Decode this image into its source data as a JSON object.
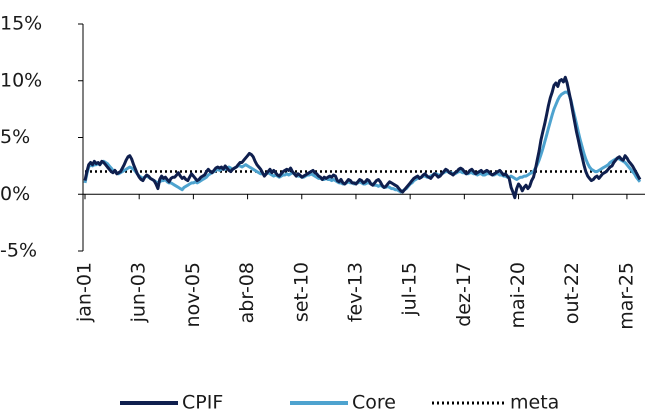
{
  "chart_data": {
    "type": "line",
    "categories": [
      "jan-01",
      null,
      null,
      null,
      null,
      null,
      null,
      null,
      null,
      null,
      null,
      null,
      null,
      null,
      null,
      null,
      null,
      null,
      null,
      null,
      null,
      null,
      null,
      null,
      null,
      null,
      null,
      null,
      null,
      "jun-03",
      null,
      null,
      null,
      null,
      null,
      null,
      null,
      null,
      null,
      null,
      null,
      null,
      null,
      null,
      null,
      null,
      null,
      null,
      null,
      null,
      null,
      null,
      null,
      null,
      null,
      null,
      null,
      null,
      "nov-05",
      null,
      null,
      null,
      null,
      null,
      null,
      null,
      null,
      null,
      null,
      null,
      null,
      null,
      null,
      null,
      null,
      null,
      null,
      null,
      null,
      null,
      null,
      null,
      null,
      null,
      null,
      null,
      null,
      "abr-08",
      null,
      null,
      null,
      null,
      null,
      null,
      null,
      null,
      null,
      null,
      null,
      null,
      null,
      null,
      null,
      null,
      null,
      null,
      null,
      null,
      null,
      null,
      null,
      null,
      null,
      null,
      null,
      null,
      "set-10",
      null,
      null,
      null,
      null,
      null,
      null,
      null,
      null,
      null,
      null,
      null,
      null,
      null,
      null,
      null,
      null,
      null,
      null,
      null,
      null,
      null,
      null,
      null,
      null,
      null,
      null,
      null,
      null,
      "fev-13",
      null,
      null,
      null,
      null,
      null,
      null,
      null,
      null,
      null,
      null,
      null,
      null,
      null,
      null,
      null,
      null,
      null,
      null,
      null,
      null,
      null,
      null,
      null,
      null,
      null,
      null,
      null,
      null,
      "jul-15",
      null,
      null,
      null,
      null,
      null,
      null,
      null,
      null,
      null,
      null,
      null,
      null,
      null,
      null,
      null,
      null,
      null,
      null,
      null,
      null,
      null,
      null,
      null,
      null,
      null,
      null,
      null,
      null,
      "dez-17",
      null,
      null,
      null,
      null,
      null,
      null,
      null,
      null,
      null,
      null,
      null,
      null,
      null,
      null,
      null,
      null,
      null,
      null,
      null,
      null,
      null,
      null,
      null,
      null,
      null,
      null,
      null,
      null,
      "mai-20",
      null,
      null,
      null,
      null,
      null,
      null,
      null,
      null,
      null,
      null,
      null,
      null,
      null,
      null,
      null,
      null,
      null,
      null,
      null,
      null,
      null,
      null,
      null,
      null,
      null,
      null,
      null,
      null,
      "out-22",
      null,
      null,
      null,
      null,
      null,
      null,
      null,
      null,
      null,
      null,
      null,
      null,
      null,
      null,
      null,
      null,
      null,
      null,
      null,
      null,
      null,
      null,
      null,
      null,
      null,
      null,
      null,
      null,
      "mar-25",
      null,
      null,
      null,
      null,
      null,
      null,
      null
    ],
    "series": [
      {
        "name": "CPIF",
        "color": "#0f1f4e",
        "values": [
          1.2,
          2.0,
          2.6,
          2.8,
          2.6,
          2.9,
          2.7,
          2.8,
          2.6,
          2.9,
          2.8,
          2.6,
          2.4,
          2.2,
          2.0,
          1.9,
          2.1,
          1.8,
          1.9,
          2.0,
          2.3,
          2.6,
          3.0,
          3.3,
          3.4,
          3.1,
          2.6,
          2.2,
          1.8,
          1.5,
          1.3,
          1.2,
          1.5,
          1.7,
          1.6,
          1.4,
          1.3,
          1.2,
          0.9,
          0.5,
          1.3,
          1.6,
          1.4,
          1.5,
          1.3,
          1.1,
          1.4,
          1.5,
          1.5,
          1.7,
          1.9,
          1.6,
          1.4,
          1.5,
          1.3,
          1.2,
          1.5,
          1.8,
          1.6,
          1.4,
          1.2,
          1.3,
          1.5,
          1.6,
          1.7,
          2.0,
          2.2,
          2.0,
          1.9,
          2.1,
          2.3,
          2.4,
          2.3,
          2.4,
          2.2,
          2.5,
          2.3,
          2.1,
          2.0,
          2.2,
          2.3,
          2.4,
          2.6,
          2.8,
          2.8,
          3.0,
          3.2,
          3.4,
          3.6,
          3.5,
          3.3,
          2.9,
          2.6,
          2.4,
          2.2,
          1.9,
          1.6,
          1.8,
          2.0,
          2.2,
          1.9,
          2.1,
          1.9,
          1.7,
          1.6,
          1.8,
          2.0,
          2.1,
          2.2,
          2.1,
          2.3,
          2.0,
          1.8,
          1.6,
          1.8,
          1.7,
          1.5,
          1.6,
          1.7,
          1.8,
          1.9,
          2.0,
          2.1,
          1.9,
          1.8,
          1.6,
          1.5,
          1.3,
          1.5,
          1.4,
          1.5,
          1.6,
          1.5,
          1.7,
          1.6,
          1.2,
          1.1,
          1.3,
          1.0,
          0.9,
          1.1,
          1.3,
          1.2,
          1.0,
          1.0,
          0.9,
          1.1,
          1.3,
          1.2,
          1.0,
          1.1,
          1.3,
          1.2,
          0.9,
          0.8,
          1.0,
          1.2,
          1.3,
          1.1,
          0.8,
          0.6,
          0.7,
          0.9,
          1.1,
          1.0,
          0.9,
          0.8,
          0.7,
          0.5,
          0.3,
          0.2,
          0.4,
          0.6,
          0.8,
          1.0,
          1.2,
          1.4,
          1.5,
          1.6,
          1.4,
          1.5,
          1.7,
          1.8,
          1.6,
          1.5,
          1.4,
          1.6,
          1.8,
          1.7,
          1.5,
          1.6,
          1.8,
          2.0,
          2.2,
          2.1,
          1.9,
          1.8,
          1.7,
          1.9,
          2.0,
          2.2,
          2.3,
          2.2,
          2.0,
          1.8,
          1.9,
          2.1,
          2.2,
          2.0,
          1.8,
          1.9,
          2.0,
          2.1,
          1.9,
          2.0,
          2.1,
          2.0,
          1.8,
          1.7,
          1.8,
          1.9,
          2.0,
          2.1,
          1.9,
          1.7,
          1.8,
          1.6,
          1.4,
          0.6,
          0.2,
          -0.3,
          0.5,
          0.9,
          0.7,
          0.3,
          0.6,
          0.8,
          0.5,
          0.7,
          1.2,
          1.5,
          2.2,
          3.0,
          3.8,
          4.8,
          5.5,
          6.2,
          7.0,
          7.8,
          8.5,
          9.0,
          9.6,
          9.8,
          9.5,
          10.0,
          10.1,
          9.9,
          10.3,
          9.8,
          9.0,
          8.2,
          7.3,
          6.4,
          5.5,
          4.8,
          4.0,
          3.3,
          2.6,
          2.0,
          1.6,
          1.4,
          1.2,
          1.3,
          1.5,
          1.6,
          1.4,
          1.6,
          1.8,
          1.9,
          2.0,
          2.2,
          2.4,
          2.5,
          2.8,
          3.0,
          3.2,
          3.3,
          3.1,
          3.0,
          3.4,
          3.2,
          2.9,
          2.7,
          2.5,
          2.2,
          1.9,
          1.6,
          1.3
        ]
      },
      {
        "name": "Core",
        "color": "#4ea3cf",
        "values": [
          1.0,
          1.8,
          2.4,
          2.6,
          2.5,
          2.6,
          2.6,
          2.7,
          2.6,
          2.8,
          2.9,
          2.8,
          2.7,
          2.5,
          2.3,
          2.1,
          2.0,
          1.9,
          1.8,
          1.9,
          2.0,
          2.1,
          2.2,
          2.3,
          2.4,
          2.3,
          2.2,
          2.0,
          1.8,
          1.6,
          1.5,
          1.4,
          1.5,
          1.6,
          1.5,
          1.4,
          1.3,
          1.2,
          1.1,
          1.0,
          1.1,
          1.2,
          1.2,
          1.3,
          1.1,
          1.0,
          1.0,
          0.9,
          0.8,
          0.7,
          0.6,
          0.5,
          0.4,
          0.6,
          0.7,
          0.8,
          0.9,
          1.0,
          1.0,
          1.1,
          1.0,
          1.1,
          1.2,
          1.3,
          1.4,
          1.5,
          1.7,
          1.8,
          1.9,
          2.0,
          2.1,
          2.2,
          2.1,
          2.2,
          2.3,
          2.2,
          2.3,
          2.4,
          2.3,
          2.2,
          2.3,
          2.4,
          2.5,
          2.5,
          2.4,
          2.5,
          2.6,
          2.5,
          2.4,
          2.3,
          2.2,
          2.1,
          2.0,
          1.9,
          1.8,
          1.8,
          1.7,
          1.8,
          1.9,
          1.8,
          1.7,
          1.6,
          1.7,
          1.6,
          1.5,
          1.6,
          1.7,
          1.7,
          1.8,
          1.7,
          1.8,
          1.9,
          1.8,
          1.7,
          1.6,
          1.6,
          1.5,
          1.5,
          1.6,
          1.7,
          1.7,
          1.8,
          1.7,
          1.6,
          1.5,
          1.4,
          1.4,
          1.3,
          1.3,
          1.4,
          1.3,
          1.3,
          1.2,
          1.3,
          1.2,
          1.1,
          1.0,
          1.0,
          0.9,
          0.9,
          1.0,
          1.1,
          1.0,
          1.0,
          0.9,
          1.0,
          1.0,
          1.1,
          1.0,
          0.9,
          0.9,
          1.0,
          1.0,
          0.9,
          0.9,
          0.8,
          0.8,
          0.7,
          0.8,
          0.7,
          0.6,
          0.6,
          0.7,
          0.6,
          0.5,
          0.5,
          0.4,
          0.4,
          0.3,
          0.2,
          0.3,
          0.4,
          0.5,
          0.7,
          0.9,
          1.0,
          1.2,
          1.3,
          1.4,
          1.5,
          1.5,
          1.6,
          1.6,
          1.5,
          1.5,
          1.6,
          1.7,
          1.8,
          1.8,
          1.7,
          1.7,
          1.8,
          1.9,
          2.0,
          2.0,
          1.9,
          1.9,
          1.8,
          1.8,
          1.9,
          2.0,
          2.0,
          1.9,
          1.9,
          1.8,
          1.8,
          1.9,
          1.9,
          1.8,
          1.8,
          1.7,
          1.8,
          1.8,
          1.7,
          1.7,
          1.8,
          1.8,
          1.8,
          1.7,
          1.7,
          1.8,
          1.8,
          1.7,
          1.7,
          1.6,
          1.6,
          1.5,
          1.5,
          1.6,
          1.5,
          1.4,
          1.3,
          1.4,
          1.5,
          1.5,
          1.6,
          1.6,
          1.7,
          1.8,
          1.9,
          2.0,
          2.3,
          2.6,
          3.0,
          3.5,
          4.0,
          4.6,
          5.2,
          5.8,
          6.4,
          7.0,
          7.5,
          7.9,
          8.3,
          8.6,
          8.8,
          8.9,
          9.0,
          9.0,
          8.8,
          8.3,
          7.6,
          6.9,
          6.2,
          5.5,
          4.8,
          4.2,
          3.6,
          3.1,
          2.7,
          2.4,
          2.2,
          2.1,
          2.0,
          2.0,
          2.1,
          2.2,
          2.3,
          2.4,
          2.5,
          2.6,
          2.8,
          2.9,
          3.0,
          3.1,
          3.2,
          3.1,
          3.0,
          2.9,
          2.8,
          2.6,
          2.4,
          2.2,
          2.0,
          1.8,
          1.5,
          1.3,
          1.1
        ]
      }
    ],
    "reference_line": {
      "name": "meta",
      "value": 2,
      "color": "#000000",
      "style": "dotted"
    },
    "ylim": [
      -5,
      15
    ],
    "yticks": [
      {
        "value": -5,
        "label": "-5%"
      },
      {
        "value": 0,
        "label": "0%"
      },
      {
        "value": 5,
        "label": "5%"
      },
      {
        "value": 10,
        "label": "10%"
      },
      {
        "value": 15,
        "label": "15%"
      }
    ],
    "grid": false,
    "legend": "bottom"
  }
}
